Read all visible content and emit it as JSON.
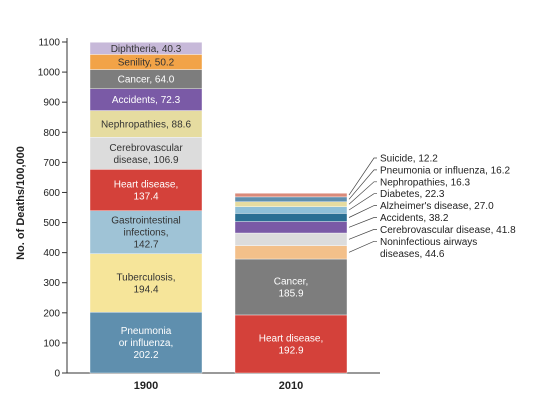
{
  "chart_data": {
    "type": "bar",
    "stacked": true,
    "categories": [
      "1900",
      "2010"
    ],
    "ylabel": "No. of Deaths/100,000",
    "xlabel": "",
    "ylim": [
      0,
      1100
    ],
    "yticks": [
      0,
      100,
      200,
      300,
      400,
      500,
      600,
      700,
      800,
      900,
      1000,
      1100
    ],
    "ytick_labels": [
      "0",
      "100",
      "200",
      "300",
      "400",
      "500",
      "600",
      "700",
      "800",
      "900",
      "1000",
      "1100"
    ],
    "grid": false,
    "stacks": [
      {
        "category": "1900",
        "segments": [
          {
            "name": "Pneumonia or influenza",
            "value": 202.2,
            "label": "Pneumonia\nor influenza,\n202.2",
            "color": "#5f8fae",
            "text_color": "#ffffff"
          },
          {
            "name": "Tuberculosis",
            "value": 194.4,
            "label": "Tuberculosis,\n194.4",
            "color": "#f6e59a",
            "text_color": "#333333"
          },
          {
            "name": "Gastrointestinal infections",
            "value": 142.7,
            "label": "Gastrointestinal\ninfections,\n142.7",
            "color": "#9fc3d6",
            "text_color": "#333333"
          },
          {
            "name": "Heart disease",
            "value": 137.4,
            "label": "Heart disease,\n137.4",
            "color": "#d4413a",
            "text_color": "#ffffff"
          },
          {
            "name": "Cerebrovascular disease",
            "value": 106.9,
            "label": "Cerebrovascular\ndisease, 106.9",
            "color": "#dcdcdc",
            "text_color": "#333333"
          },
          {
            "name": "Nephropathies",
            "value": 88.6,
            "label": "Nephropathies, 88.6",
            "color": "#e6dca0",
            "text_color": "#333333"
          },
          {
            "name": "Accidents",
            "value": 72.3,
            "label": "Accidents, 72.3",
            "color": "#7a5aa6",
            "text_color": "#ffffff"
          },
          {
            "name": "Cancer",
            "value": 64.0,
            "label": "Cancer, 64.0",
            "color": "#7d7d7d",
            "text_color": "#ffffff"
          },
          {
            "name": "Senility",
            "value": 50.2,
            "label": "Senility, 50.2",
            "color": "#f2a347",
            "text_color": "#333333"
          },
          {
            "name": "Diphtheria",
            "value": 40.3,
            "label": "Diphtheria, 40.3",
            "color": "#c7b9d9",
            "text_color": "#333333"
          }
        ]
      },
      {
        "category": "2010",
        "segments": [
          {
            "name": "Heart disease",
            "value": 192.9,
            "label": "Heart disease,\n192.9",
            "color": "#d4413a",
            "text_color": "#ffffff"
          },
          {
            "name": "Cancer",
            "value": 185.9,
            "label": "Cancer,\n185.9",
            "color": "#7d7d7d",
            "text_color": "#ffffff"
          },
          {
            "name": "Noninfectious airways diseases",
            "value": 44.6,
            "label": "Noninfectious airways\ndiseases, 44.6",
            "color": "#f3c08a",
            "text_color": "#333333",
            "callout": true
          },
          {
            "name": "Cerebrovascular disease",
            "value": 41.8,
            "label": "Cerebrovascular disease, 41.8",
            "color": "#dcdcdc",
            "text_color": "#333333",
            "callout": true
          },
          {
            "name": "Accidents",
            "value": 38.2,
            "label": "Accidents, 38.2",
            "color": "#7a5aa6",
            "text_color": "#ffffff",
            "callout": true
          },
          {
            "name": "Alzheimer's disease",
            "value": 27.0,
            "label": "Alzheimer's disease, 27.0",
            "color": "#2a6f93",
            "text_color": "#ffffff",
            "callout": true
          },
          {
            "name": "Diabetes",
            "value": 22.3,
            "label": "Diabetes, 22.3",
            "color": "#8fc0d8",
            "text_color": "#333333",
            "callout": true
          },
          {
            "name": "Nephropathies",
            "value": 16.3,
            "label": "Nephropathies, 16.3",
            "color": "#e6dca0",
            "text_color": "#333333",
            "callout": true
          },
          {
            "name": "Pneumonia or influenza",
            "value": 16.2,
            "label": "Pneumonia or influenza, 16.2",
            "color": "#5f8fae",
            "text_color": "#ffffff",
            "callout": true
          },
          {
            "name": "Suicide",
            "value": 12.2,
            "label": "Suicide, 12.2",
            "color": "#d98a7a",
            "text_color": "#333333",
            "callout": true
          }
        ]
      }
    ]
  }
}
